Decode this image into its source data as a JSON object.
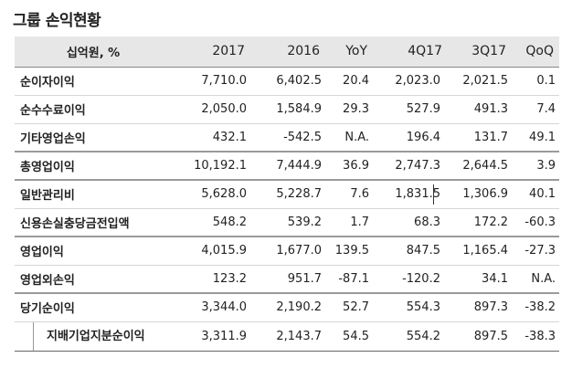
{
  "title": "그룹 손익현황",
  "columns": [
    "십억원, %",
    "2017",
    "2016",
    "YoY",
    "4Q17",
    "3Q17",
    "QoQ"
  ],
  "rows": [
    {
      "label": "순이자이익",
      "values": [
        "7,710.0",
        "6,402.5",
        "20.4",
        "2,023.0",
        "2,021.5",
        "0.1"
      ]
    },
    {
      "label": "순수수료이익",
      "values": [
        "2,050.0",
        "1,584.9",
        "29.3",
        "527.9",
        "491.3",
        "7.4"
      ]
    },
    {
      "label": "기타영업손익",
      "values": [
        "432.1",
        "-542.5",
        "N.A.",
        "196.4",
        "131.7",
        "49.1"
      ]
    },
    {
      "label": "총영업이익",
      "values": [
        "10,192.1",
        "7,444.9",
        "36.9",
        "2,747.3",
        "2,644.5",
        "3.9"
      ]
    },
    {
      "label": "일반관리비",
      "values": [
        "5,628.0",
        "5,228.7",
        "7.6",
        "1,831.5",
        "1,306.9",
        "40.1"
      ]
    },
    {
      "label": "신용손실충당금전입액",
      "values": [
        "548.2",
        "539.2",
        "1.7",
        "68.3",
        "172.2",
        "-60.3"
      ]
    },
    {
      "label": "영업이익",
      "values": [
        "4,015.9",
        "1,677.0",
        "139.5",
        "847.5",
        "1,165.4",
        "-27.3"
      ]
    },
    {
      "label": "영업외손익",
      "values": [
        "123.2",
        "951.7",
        "-87.1",
        "-120.2",
        "34.1",
        "N.A."
      ]
    },
    {
      "label": "당기순이익",
      "values": [
        "3,344.0",
        "2,190.2",
        "52.7",
        "554.3",
        "897.3",
        "-38.2"
      ]
    },
    {
      "label": "지배기업지분순이익",
      "values": [
        "3,311.9",
        "2,143.7",
        "54.5",
        "554.2",
        "897.5",
        "-38.3"
      ]
    }
  ]
}
